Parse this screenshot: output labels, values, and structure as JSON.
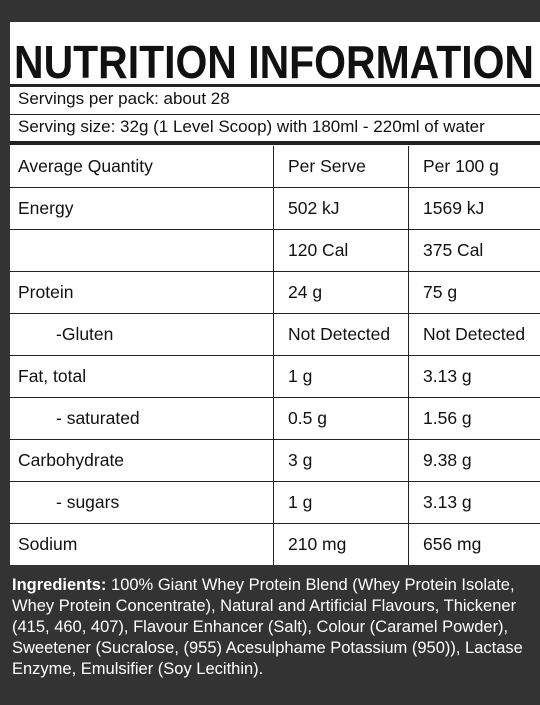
{
  "header": {
    "title": "NUTRITION INFORMATION",
    "servings_per_pack": "Servings per pack: about 28",
    "serving_size": "Serving size: 32g (1 Level Scoop) with 180ml - 220ml of water"
  },
  "table": {
    "columns": [
      "Average Quantity",
      "Per Serve",
      "Per 100 g"
    ],
    "rows": [
      [
        "Energy",
        "502 kJ",
        "1569 kJ"
      ],
      [
        null,
        "120 Cal",
        "375 Cal"
      ],
      [
        "Protein",
        "24 g",
        "75 g"
      ],
      [
        "-Gluten",
        "Not Detected",
        "Not Detected"
      ],
      [
        "Fat, total",
        "1 g",
        "3.13 g"
      ],
      [
        "- saturated",
        "0.5 g",
        "1.56 g"
      ],
      [
        "Carbohydrate",
        "3 g",
        "9.38 g"
      ],
      [
        "- sugars",
        "1 g",
        "3.13 g"
      ],
      [
        "Sodium",
        "210 mg",
        "656 mg"
      ]
    ]
  },
  "ingredients": {
    "label": "Ingredients:",
    "text": "100% Giant Whey Protein Blend (Whey Protein Isolate, Whey Protein Concentrate), Natural and Artificial Flavours, Thickener (415, 460, 407), Flavour Enhancer (Salt), Colour (Caramel Powder), Sweetener (Sucralose, (955) Acesulphame Potassium (950)), Lactase Enzyme, Emulsifier (Soy Lecithin)."
  }
}
